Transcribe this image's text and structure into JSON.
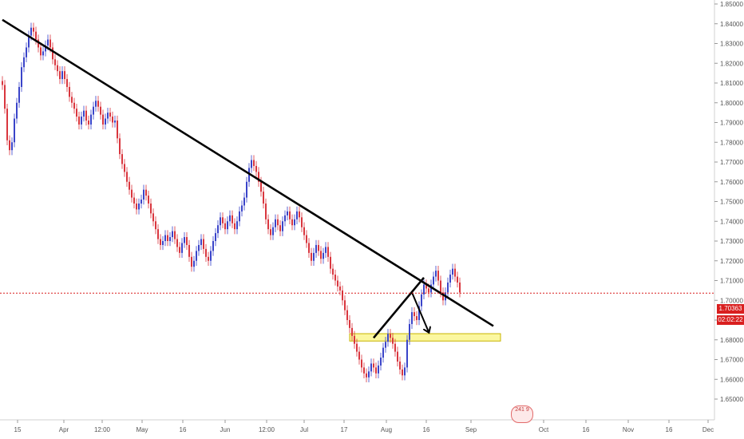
{
  "chart_data": {
    "type": "candlestick",
    "y_axis_ticks": [
      "1.85000",
      "1.84000",
      "1.83000",
      "1.82000",
      "1.81000",
      "1.80000",
      "1.79000",
      "1.78000",
      "1.77000",
      "1.76000",
      "1.75000",
      "1.74000",
      "1.73000",
      "1.72000",
      "1.71000",
      "1.70000",
      "1.69000",
      "1.68000",
      "1.67000",
      "1.66000",
      "1.65000"
    ],
    "ylim": [
      1.65,
      1.85
    ],
    "x_axis_ticks": [
      "15",
      "Apr",
      "12:00",
      "May",
      "16",
      "Jun",
      "12:00",
      "Jul",
      "17",
      "Aug",
      "16",
      "Sep",
      "Oct",
      "16",
      "Nov",
      "16",
      "Dec"
    ],
    "price_line": {
      "value": 1.70363,
      "label": "1.70363",
      "countdown": "02:02:22"
    },
    "price_series": [
      1.809,
      1.797,
      1.781,
      1.776,
      1.78,
      1.792,
      1.8,
      1.808,
      1.818,
      1.823,
      1.828,
      1.834,
      1.838,
      1.836,
      1.832,
      1.828,
      1.824,
      1.826,
      1.829,
      1.832,
      1.828,
      1.822,
      1.819,
      1.816,
      1.812,
      1.816,
      1.812,
      1.808,
      1.803,
      1.8,
      1.797,
      1.793,
      1.789,
      1.793,
      1.796,
      1.791,
      1.789,
      1.794,
      1.798,
      1.801,
      1.798,
      1.794,
      1.789,
      1.792,
      1.795,
      1.793,
      1.79,
      1.791,
      1.782,
      1.774,
      1.769,
      1.765,
      1.76,
      1.756,
      1.752,
      1.749,
      1.746,
      1.749,
      1.751,
      1.756,
      1.753,
      1.749,
      1.744,
      1.74,
      1.736,
      1.731,
      1.728,
      1.73,
      1.733,
      1.73,
      1.732,
      1.735,
      1.731,
      1.727,
      1.724,
      1.729,
      1.732,
      1.728,
      1.722,
      1.717,
      1.72,
      1.725,
      1.728,
      1.731,
      1.726,
      1.722,
      1.72,
      1.725,
      1.73,
      1.734,
      1.738,
      1.742,
      1.739,
      1.736,
      1.74,
      1.743,
      1.739,
      1.736,
      1.74,
      1.745,
      1.748,
      1.752,
      1.76,
      1.767,
      1.771,
      1.768,
      1.765,
      1.76,
      1.755,
      1.749,
      1.741,
      1.736,
      1.733,
      1.737,
      1.741,
      1.738,
      1.735,
      1.74,
      1.743,
      1.745,
      1.741,
      1.738,
      1.741,
      1.745,
      1.742,
      1.737,
      1.733,
      1.729,
      1.724,
      1.72,
      1.724,
      1.728,
      1.725,
      1.721,
      1.724,
      1.727,
      1.722,
      1.716,
      1.713,
      1.71,
      1.707,
      1.705,
      1.7,
      1.695,
      1.69,
      1.686,
      1.682,
      1.678,
      1.674,
      1.67,
      1.666,
      1.663,
      1.661,
      1.664,
      1.668,
      1.666,
      1.663,
      1.667,
      1.671,
      1.676,
      1.679,
      1.683,
      1.681,
      1.678,
      1.674,
      1.669,
      1.665,
      1.662,
      1.666,
      1.68,
      1.688,
      1.694,
      1.692,
      1.69,
      1.697,
      1.703,
      1.708,
      1.706,
      1.704,
      1.708,
      1.712,
      1.715,
      1.71,
      1.704,
      1.7,
      1.704,
      1.709,
      1.713,
      1.716,
      1.712,
      1.709,
      1.704
    ],
    "annotations": [
      {
        "type": "trendline",
        "from": {
          "bar": 0,
          "price": 1.842
        },
        "to": {
          "bar": 205,
          "price": 1.687
        }
      },
      {
        "type": "trendline",
        "from": {
          "bar": 155,
          "price": 1.681
        },
        "to": {
          "bar": 176,
          "price": 1.7115
        }
      },
      {
        "type": "arrow",
        "from": {
          "bar": 171,
          "price": 1.704
        },
        "to": {
          "bar": 178,
          "price": 1.684
        }
      },
      {
        "type": "zone",
        "from": {
          "bar": 145,
          "price": 1.6815
        },
        "to": {
          "bar": 208,
          "price": 1.681
        }
      }
    ],
    "colors": {
      "up": "#3a44c9",
      "down": "#d9363e",
      "price_line": "#d91f1f",
      "zone_fill": "#fbf7a0",
      "zone_border": "#c8b400",
      "drawing": "#000000"
    }
  },
  "badge_text": "241 9"
}
